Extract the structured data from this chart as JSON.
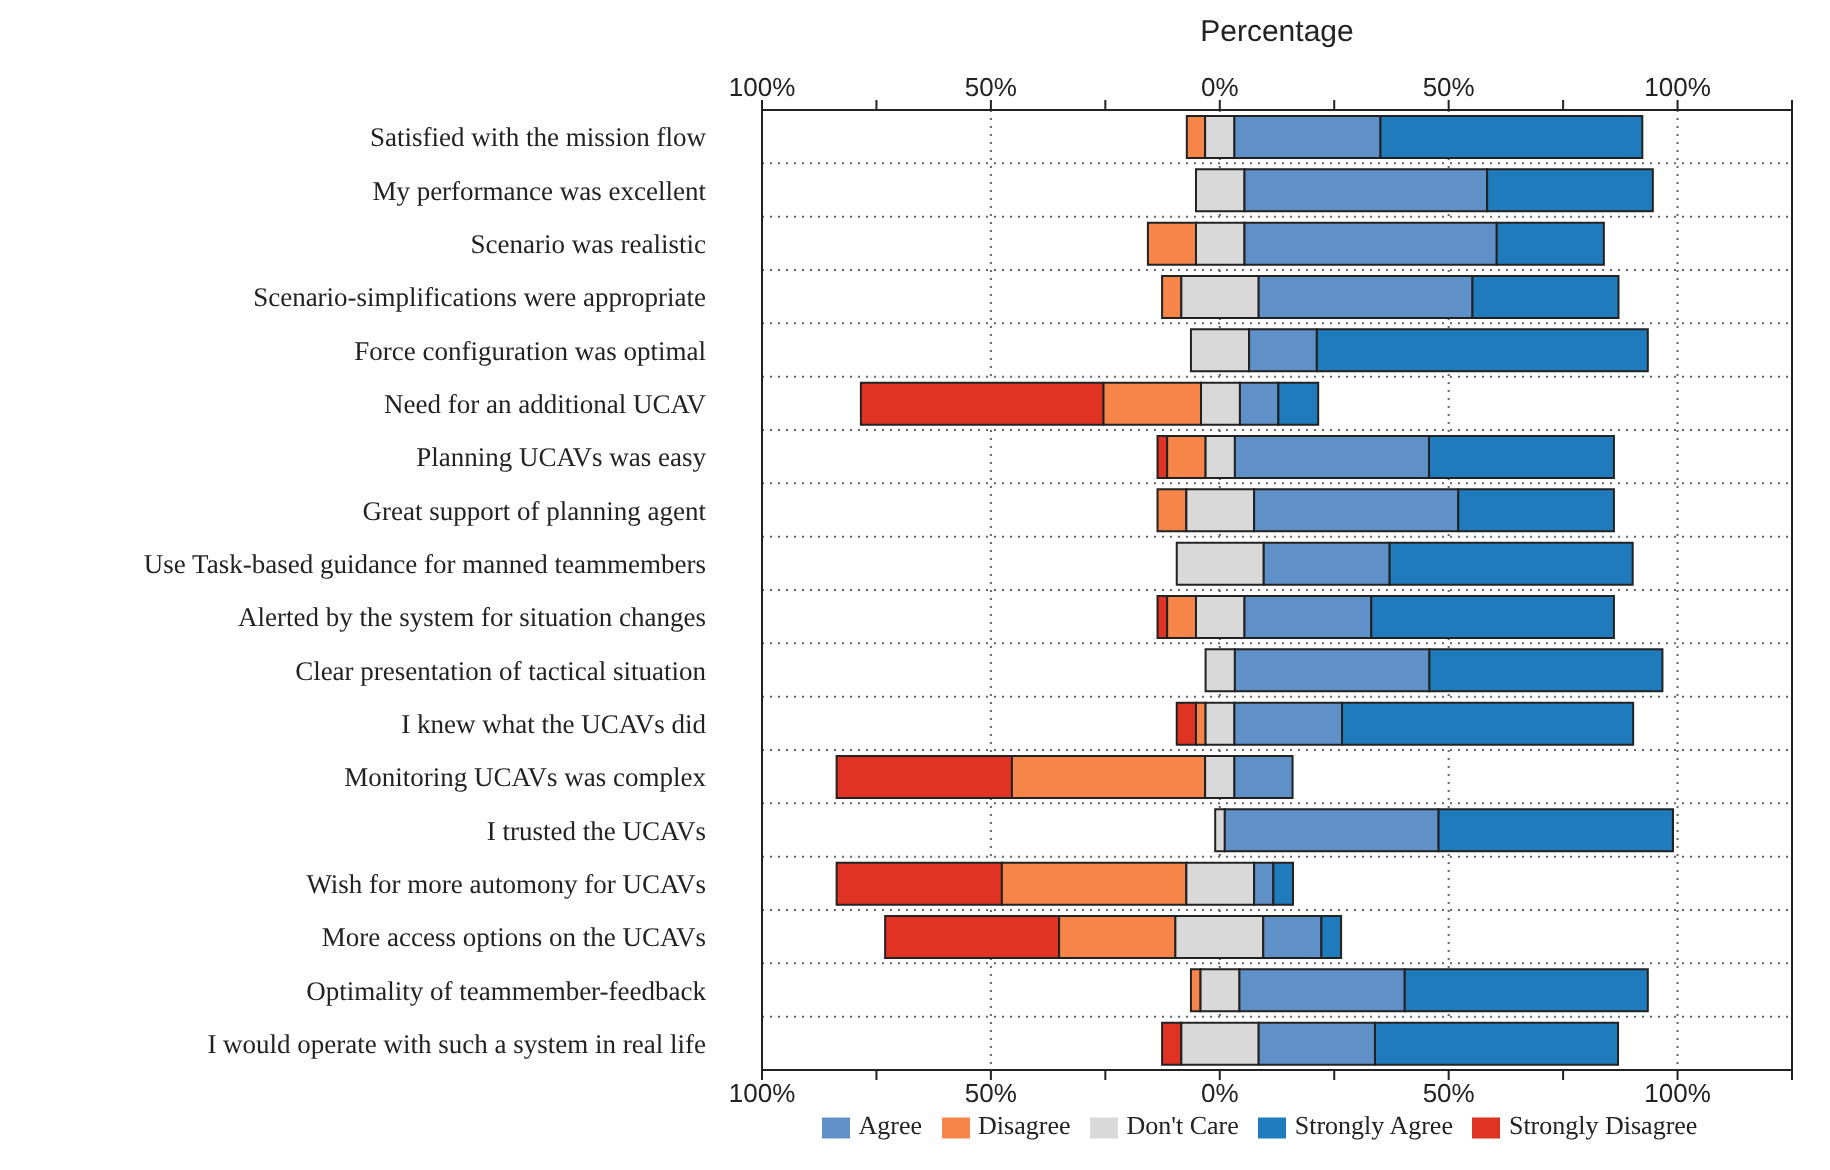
{
  "chart_data": {
    "type": "bar",
    "orientation": "horizontal",
    "x2label": "Percentage",
    "categories": [
      "Satisfied with the mission flow",
      "My performance was excellent",
      "Scenario was realistic",
      "Scenario-simplifications were appropriate",
      "Force configuration was optimal",
      "Need for an additional UCAV",
      "Planning UCAVs was easy",
      "Great support of planning agent",
      "Use Task-based guidance for manned teammembers",
      "Alerted by the system for situation changes",
      "Clear presentation of tactical situation",
      "I knew what the UCAVs did",
      "Monitoring UCAVs was complex",
      "I trusted the UCAVs",
      "Wish for more automony for UCAVs",
      "More access options on the UCAVs",
      "Optimality of teammember-feedback",
      "I would operate with such a system in real life"
    ],
    "series": [
      {
        "name": "Strongly Disagree",
        "color": "#e03324",
        "base": [
          null,
          null,
          null,
          null,
          null,
          -78.4,
          -13.6,
          null,
          null,
          -13.6,
          null,
          -9.4,
          -83.7,
          null,
          -83.7,
          -73.1,
          null,
          -12.6
        ],
        "values": [
          null,
          null,
          null,
          null,
          null,
          53,
          2.1,
          null,
          null,
          2.1,
          null,
          4.2,
          38.3,
          null,
          36.1,
          38,
          null,
          4.2
        ]
      },
      {
        "name": "Disagree",
        "color": "#f6854a",
        "base": [
          -7.2,
          null,
          -15.7,
          -12.6,
          null,
          -25.4,
          -11.5,
          -13.6,
          null,
          -11.5,
          null,
          -5.2,
          -45.4,
          null,
          -47.6,
          -35.1,
          -6.3,
          null
        ],
        "values": [
          4,
          null,
          10.5,
          4.2,
          null,
          21.3,
          8.4,
          6.3,
          null,
          6.3,
          null,
          2.1,
          42.2,
          null,
          40.3,
          25.4,
          2.1,
          null
        ]
      },
      {
        "name": "Don't Care",
        "color": "#d9d9d9",
        "base": [
          -3.2,
          -5.2,
          -5.2,
          -8.4,
          -6.3,
          -4.1,
          -3.1,
          -7.3,
          -9.4,
          -5.2,
          -3.1,
          -3.1,
          -3.2,
          -1,
          -7.3,
          -9.7,
          -4.2,
          -8.4
        ],
        "values": [
          6.4,
          10.6,
          10.6,
          16.9,
          12.7,
          8.5,
          6.4,
          14.8,
          19,
          10.6,
          6.4,
          6.3,
          6.4,
          2.1,
          14.8,
          19.2,
          8.5,
          16.9
        ]
      },
      {
        "name": "Agree",
        "color": "#6090c8",
        "base": [
          3.2,
          5.4,
          5.4,
          8.5,
          6.4,
          4.4,
          3.3,
          7.5,
          9.6,
          5.4,
          3.3,
          3.2,
          3.2,
          1.1,
          7.5,
          9.5,
          4.3,
          8.5
        ],
        "values": [
          31.9,
          53,
          55.1,
          46.7,
          14.8,
          8.4,
          42.4,
          44.6,
          27.5,
          27.7,
          42.5,
          23.5,
          12.7,
          46.7,
          4.2,
          12.7,
          36.1,
          25.4
        ]
      },
      {
        "name": "Strongly Agree",
        "color": "#1f7bbb",
        "base": [
          35.1,
          58.4,
          60.5,
          55.2,
          21.2,
          12.8,
          45.7,
          52.1,
          37.1,
          33.1,
          45.8,
          26.7,
          null,
          47.8,
          11.7,
          22.2,
          40.4,
          33.9
        ],
        "values": [
          57.2,
          36.2,
          23.4,
          31.9,
          72.3,
          8.7,
          40.4,
          34,
          53.1,
          53,
          50.9,
          63.6,
          null,
          51.2,
          4.3,
          4.3,
          53.1,
          53.1
        ]
      }
    ],
    "xlim": [
      -100,
      125
    ],
    "xticks": [
      {
        "value": -100,
        "label": "100%"
      },
      {
        "value": -75,
        "label": null
      },
      {
        "value": -50,
        "label": "50%"
      },
      {
        "value": -25,
        "label": null
      },
      {
        "value": 0,
        "label": "0%"
      },
      {
        "value": 25,
        "label": null
      },
      {
        "value": 50,
        "label": "50%"
      },
      {
        "value": 75,
        "label": null
      },
      {
        "value": 100,
        "label": "100%"
      },
      {
        "value": 125,
        "label": null
      }
    ],
    "x2lim": [
      -100,
      125
    ],
    "x2ticks": [
      {
        "value": -100,
        "label": "100%"
      },
      {
        "value": -75,
        "label": null
      },
      {
        "value": -50,
        "label": "50%"
      },
      {
        "value": -25,
        "label": null
      },
      {
        "value": 0,
        "label": "0%"
      },
      {
        "value": 25,
        "label": null
      },
      {
        "value": 50,
        "label": "50%"
      },
      {
        "value": 75,
        "label": null
      },
      {
        "value": 100,
        "label": "100%"
      },
      {
        "value": 125,
        "label": null
      }
    ],
    "grid": true,
    "legend": "bottom"
  }
}
